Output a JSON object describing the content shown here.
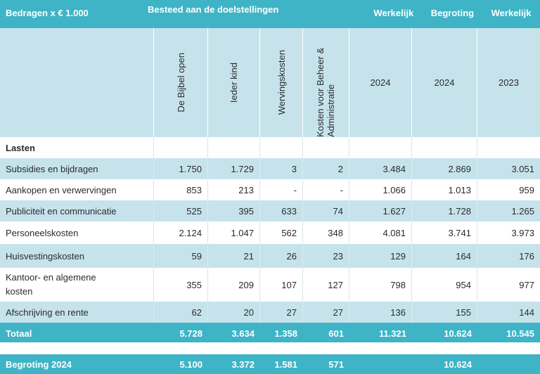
{
  "header": {
    "unit_label": "Bedragen x € 1.000",
    "group_label": "Besteed aan de doelstellingen",
    "col5_label": "Werkelijk",
    "col6_label": "Begroting",
    "col7_label": "Werkelijk",
    "columns": [
      "De Bijbel open",
      "Ieder kind",
      "Wervingskosten",
      "Kosten voor Beheer & Administratie"
    ],
    "years": [
      "2024",
      "2024",
      "2023"
    ]
  },
  "section_title": "Lasten",
  "rows": [
    {
      "label": "Subsidies en bijdragen",
      "values": [
        "1.750",
        "1.729",
        "3",
        "2",
        "3.484",
        "2.869",
        "3.051"
      ]
    },
    {
      "label": "Aankopen en verwervingen",
      "values": [
        "853",
        "213",
        "-",
        "-",
        "1.066",
        "1.013",
        "959"
      ]
    },
    {
      "label": "Publiciteit en communicatie",
      "values": [
        "525",
        "395",
        "633",
        "74",
        "1.627",
        "1.728",
        "1.265"
      ]
    },
    {
      "label": "Personeelskosten",
      "values": [
        "2.124",
        "1.047",
        "562",
        "348",
        "4.081",
        "3.741",
        "3.973"
      ]
    },
    {
      "label": "Huisvestingskosten",
      "values": [
        "59",
        "21",
        "26",
        "23",
        "129",
        "164",
        "176"
      ]
    },
    {
      "label": "Kantoor- en algemene kosten",
      "values": [
        "355",
        "209",
        "107",
        "127",
        "798",
        "954",
        "977"
      ]
    },
    {
      "label": "Afschrijving en rente",
      "values": [
        "62",
        "20",
        "27",
        "27",
        "136",
        "155",
        "144"
      ]
    }
  ],
  "total": {
    "label": "Totaal",
    "values": [
      "5.728",
      "3.634",
      "1.358",
      "601",
      "11.321",
      "10.624",
      "10.545"
    ]
  },
  "budget": {
    "label": "Begroting 2024",
    "values": [
      "5.100",
      "3.372",
      "1.581",
      "571",
      "",
      "10.624",
      ""
    ]
  }
}
